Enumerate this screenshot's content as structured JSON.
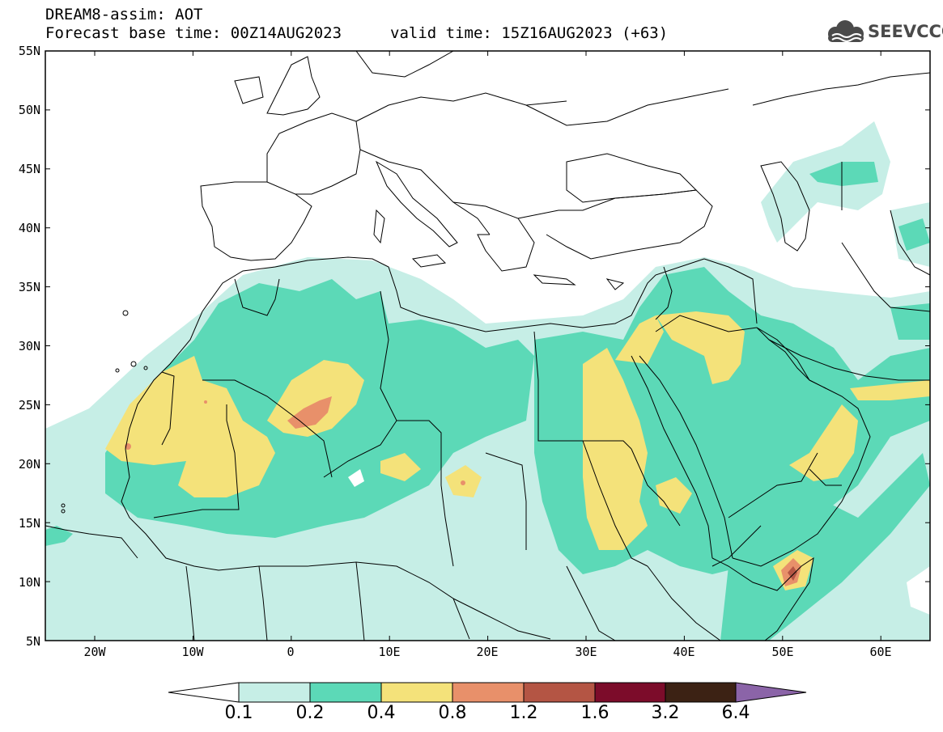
{
  "header": {
    "title": "DREAM8-assim: AOT",
    "forecast_base": "Forecast base time: 00Z14AUG2023",
    "valid_time": "valid time: 15Z16AUG2023 (+63)",
    "logo_text": "SEEVCCC"
  },
  "map": {
    "lat_labels": [
      "55N",
      "50N",
      "45N",
      "40N",
      "35N",
      "30N",
      "25N",
      "20N",
      "15N",
      "10N",
      "5N"
    ],
    "lon_labels": [
      "20W",
      "10W",
      "0",
      "10E",
      "20E",
      "30E",
      "40E",
      "50E",
      "60E"
    ]
  },
  "colorbar": {
    "labels": [
      "0.1",
      "0.2",
      "0.4",
      "0.8",
      "1.2",
      "1.6",
      "3.2",
      "6.4"
    ],
    "colors": [
      "#ffffff",
      "#c6eee6",
      "#5cd9b7",
      "#f4e27a",
      "#e8906a",
      "#b45544",
      "#7c0c2a",
      "#3c2214",
      "#8b64a8"
    ]
  }
}
